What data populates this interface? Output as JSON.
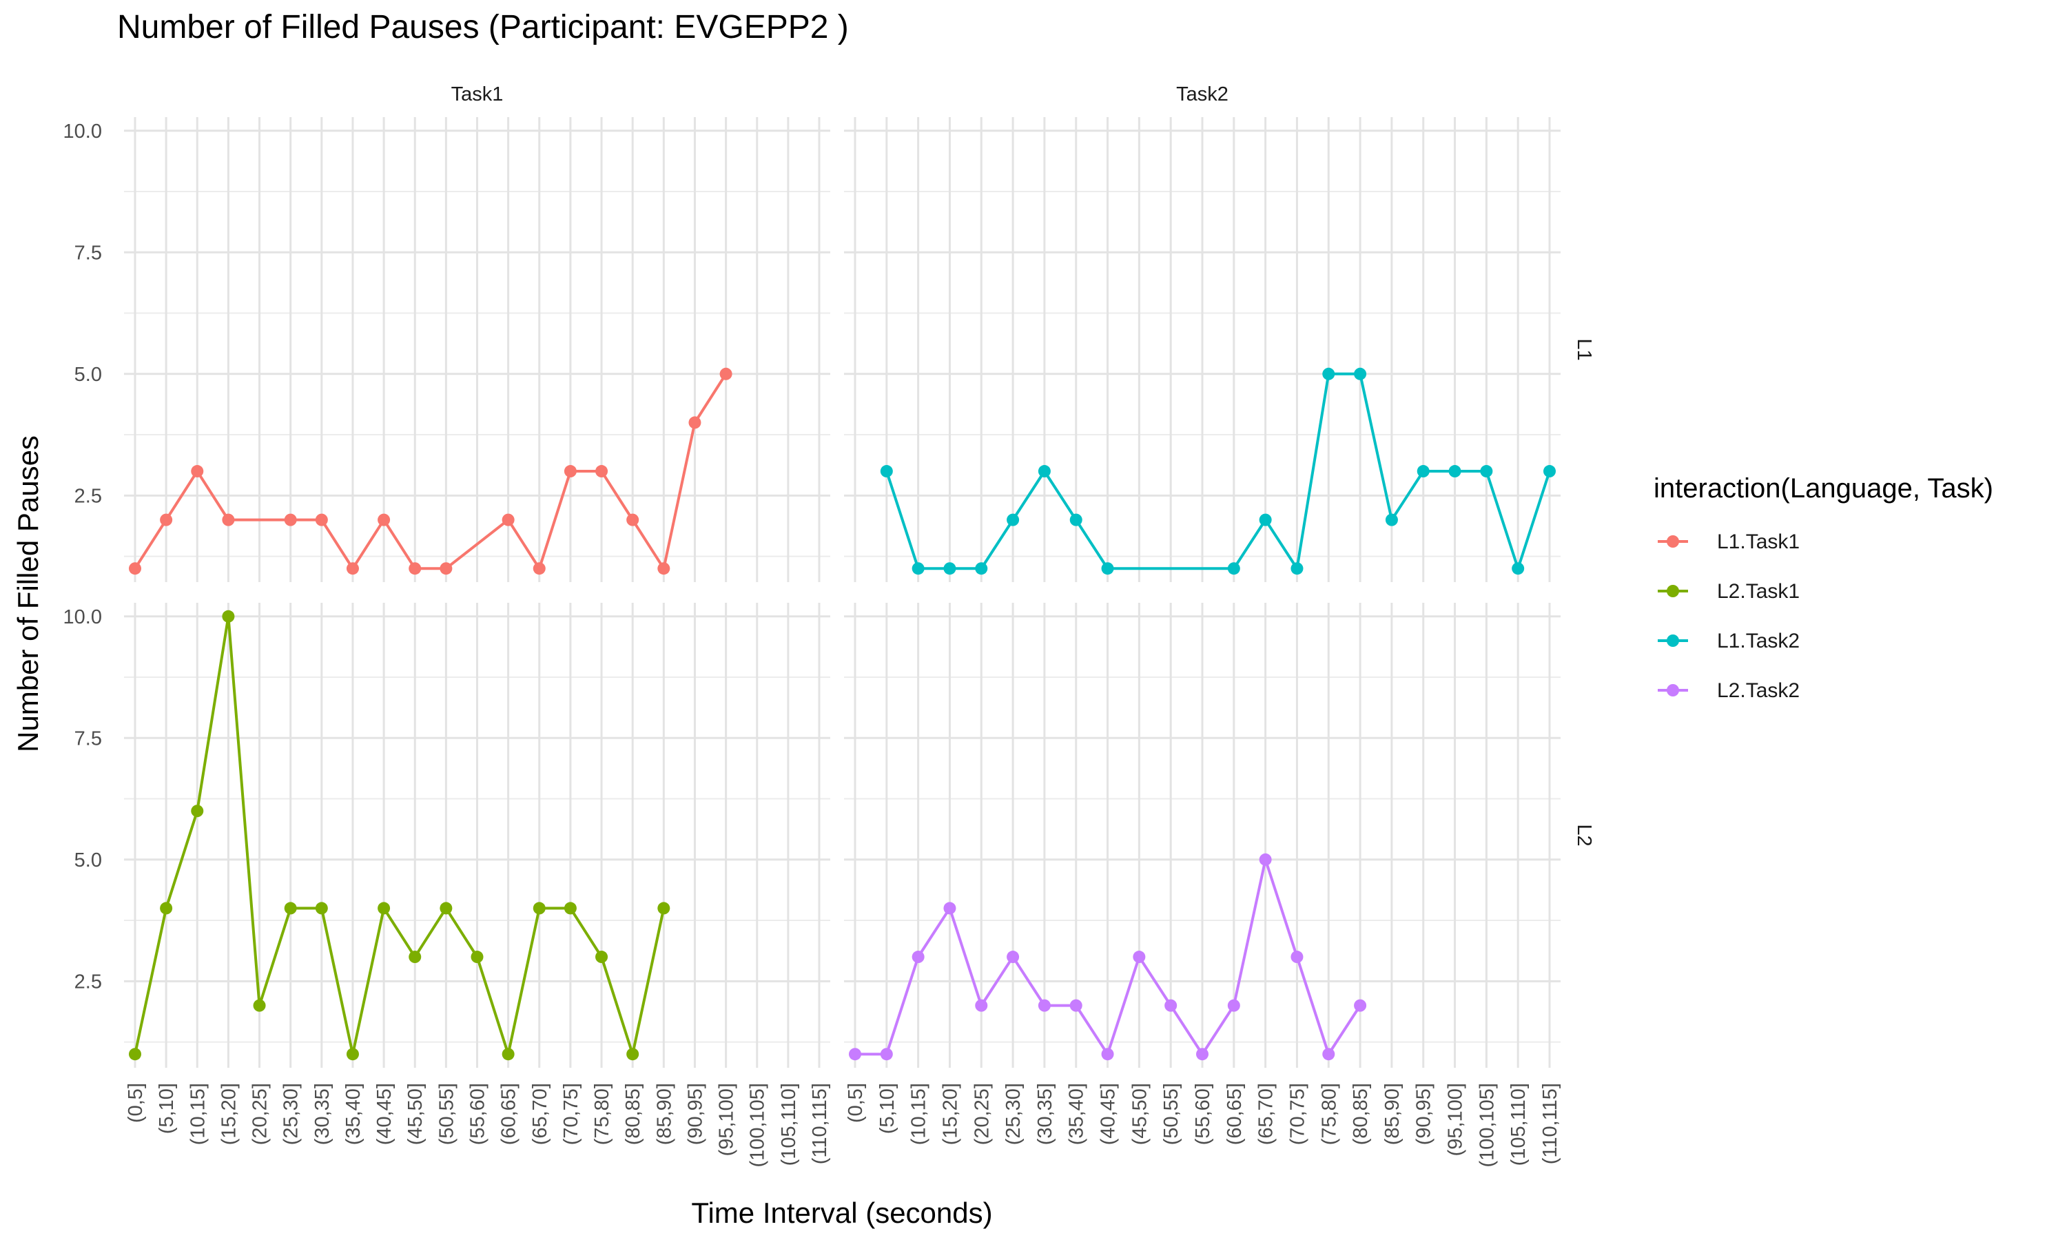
{
  "chart_data": {
    "type": "line",
    "title": "Number of Filled Pauses (Participant: EVGEPP2 )",
    "xlabel": "Time Interval (seconds)",
    "ylabel": "Number of Filled Pauses",
    "categories": [
      "(0,5]",
      "(5,10]",
      "(10,15]",
      "(15,20]",
      "(20,25]",
      "(25,30]",
      "(30,35]",
      "(35,40]",
      "(40,45]",
      "(45,50]",
      "(50,55]",
      "(55,60]",
      "(60,65]",
      "(65,70]",
      "(70,75]",
      "(75,80]",
      "(80,85]",
      "(85,90]",
      "(90,95]",
      "(95,100]",
      "(100,105]",
      "(105,110]",
      "(110,115]"
    ],
    "ylim": [
      0.72,
      10.28
    ],
    "yticks": [
      2.5,
      5.0,
      7.5,
      10.0
    ],
    "ytick_labels": [
      "2.5",
      "5.0",
      "7.5",
      "10.0"
    ],
    "grid": true,
    "legend": {
      "title": "interaction(Language, Task)",
      "placement": "right",
      "entries": [
        "L1.Task1",
        "L2.Task1",
        "L1.Task2",
        "L2.Task2"
      ]
    },
    "facets": {
      "columns": [
        "Task1",
        "Task2"
      ],
      "rows": [
        "L1",
        "L2"
      ]
    },
    "series": [
      {
        "name": "L1.Task1",
        "color": "#F8766D",
        "row": 0,
        "col": 0,
        "points": [
          [
            "(0,5]",
            1
          ],
          [
            "(5,10]",
            2
          ],
          [
            "(10,15]",
            3
          ],
          [
            "(15,20]",
            2
          ],
          [
            "(25,30]",
            2
          ],
          [
            "(30,35]",
            2
          ],
          [
            "(35,40]",
            1
          ],
          [
            "(40,45]",
            2
          ],
          [
            "(45,50]",
            1
          ],
          [
            "(50,55]",
            1
          ],
          [
            "(60,65]",
            2
          ],
          [
            "(65,70]",
            1
          ],
          [
            "(70,75]",
            3
          ],
          [
            "(75,80]",
            3
          ],
          [
            "(80,85]",
            2
          ],
          [
            "(85,90]",
            1
          ],
          [
            "(90,95]",
            4
          ],
          [
            "(95,100]",
            5
          ]
        ]
      },
      {
        "name": "L2.Task1",
        "color": "#7CAE00",
        "row": 1,
        "col": 0,
        "points": [
          [
            "(0,5]",
            1
          ],
          [
            "(5,10]",
            4
          ],
          [
            "(10,15]",
            6
          ],
          [
            "(15,20]",
            10
          ],
          [
            "(20,25]",
            2
          ],
          [
            "(25,30]",
            4
          ],
          [
            "(30,35]",
            4
          ],
          [
            "(35,40]",
            1
          ],
          [
            "(40,45]",
            4
          ],
          [
            "(45,50]",
            3
          ],
          [
            "(50,55]",
            4
          ],
          [
            "(55,60]",
            3
          ],
          [
            "(60,65]",
            1
          ],
          [
            "(65,70]",
            4
          ],
          [
            "(70,75]",
            4
          ],
          [
            "(75,80]",
            3
          ],
          [
            "(80,85]",
            1
          ],
          [
            "(85,90]",
            4
          ]
        ]
      },
      {
        "name": "L1.Task2",
        "color": "#00BFC4",
        "row": 0,
        "col": 1,
        "points": [
          [
            "(5,10]",
            3
          ],
          [
            "(10,15]",
            1
          ],
          [
            "(15,20]",
            1
          ],
          [
            "(20,25]",
            1
          ],
          [
            "(25,30]",
            2
          ],
          [
            "(30,35]",
            3
          ],
          [
            "(35,40]",
            2
          ],
          [
            "(40,45]",
            1
          ],
          [
            "(60,65]",
            1
          ],
          [
            "(65,70]",
            2
          ],
          [
            "(70,75]",
            1
          ],
          [
            "(75,80]",
            5
          ],
          [
            "(80,85]",
            5
          ],
          [
            "(85,90]",
            2
          ],
          [
            "(90,95]",
            3
          ],
          [
            "(95,100]",
            3
          ],
          [
            "(100,105]",
            3
          ],
          [
            "(105,110]",
            1
          ],
          [
            "(110,115]",
            3
          ]
        ]
      },
      {
        "name": "L2.Task2",
        "color": "#C77CFF",
        "row": 1,
        "col": 1,
        "points": [
          [
            "(0,5]",
            1
          ],
          [
            "(5,10]",
            1
          ],
          [
            "(10,15]",
            3
          ],
          [
            "(15,20]",
            4
          ],
          [
            "(20,25]",
            2
          ],
          [
            "(25,30]",
            3
          ],
          [
            "(30,35]",
            2
          ],
          [
            "(35,40]",
            2
          ],
          [
            "(40,45]",
            1
          ],
          [
            "(45,50]",
            3
          ],
          [
            "(50,55]",
            2
          ],
          [
            "(55,60]",
            1
          ],
          [
            "(60,65]",
            2
          ],
          [
            "(65,70]",
            5
          ],
          [
            "(70,75]",
            3
          ],
          [
            "(75,80]",
            1
          ],
          [
            "(80,85]",
            2
          ]
        ]
      }
    ]
  }
}
